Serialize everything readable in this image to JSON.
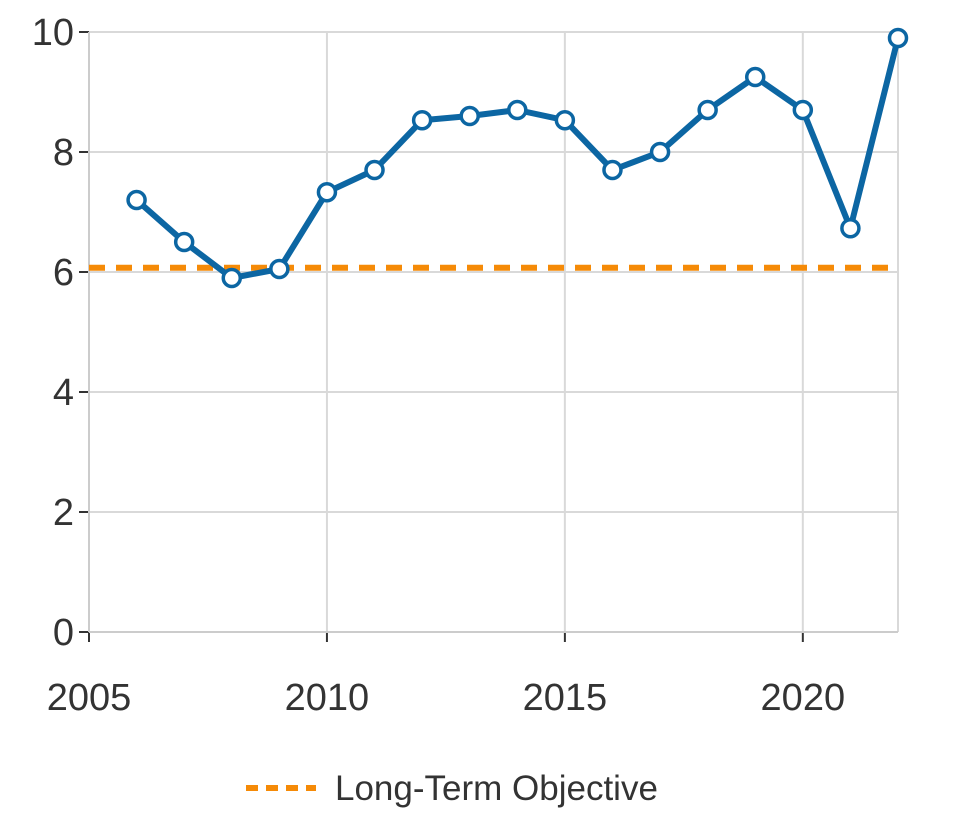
{
  "chart_data": {
    "type": "line",
    "xlim": [
      2005,
      2022
    ],
    "ylim": [
      0,
      10
    ],
    "x_ticks": [
      "2005",
      "2010",
      "2015",
      "2020"
    ],
    "y_ticks": [
      "0",
      "2",
      "4",
      "6",
      "8",
      "10"
    ],
    "grid": true,
    "legend_position": "bottom",
    "series": [
      {
        "color": "#0c66a3",
        "x": [
          2006,
          2007,
          2008,
          2009,
          2010,
          2011,
          2012,
          2013,
          2014,
          2015,
          2016,
          2017,
          2018,
          2019,
          2020,
          2021,
          2022
        ],
        "y": [
          7.2,
          6.5,
          5.9,
          6.05,
          7.33,
          7.7,
          8.53,
          8.6,
          8.7,
          8.53,
          7.7,
          8.0,
          8.7,
          9.25,
          8.7,
          6.73,
          9.9
        ]
      }
    ],
    "reference_lines": [
      {
        "name": "Long-Term Objective",
        "y": 6.07,
        "color": "#f58a07",
        "style": "dashed"
      }
    ],
    "legend": [
      {
        "label": "Long-Term Objective",
        "color": "#f58a07",
        "style": "dashed"
      }
    ]
  }
}
